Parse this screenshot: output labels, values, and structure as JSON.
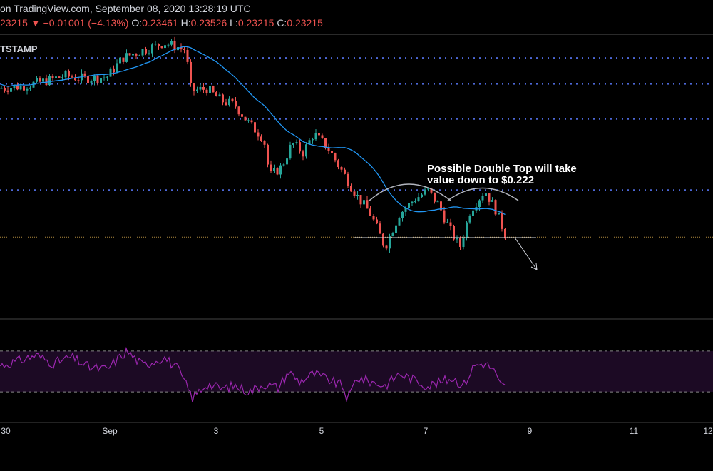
{
  "header": {
    "title": "on TradingView.com, September 08, 2020 13:28:19 UTC",
    "price": "23215",
    "change_arrow": "▼",
    "change": "−0.01001 (−4.13%)",
    "o_label": "O:",
    "o_value": "0.23461",
    "h_label": "H:",
    "h_value": "0.23526",
    "l_label": "L:",
    "l_value": "0.23215",
    "c_label": "C:",
    "c_value": "0.23215"
  },
  "symbol_label": "TSTAMP",
  "annotation": {
    "line1": "Possible Double Top will take",
    "line2": "value down to $0.222"
  },
  "colors": {
    "up": "#26a69a",
    "down": "#ef5350",
    "ma": "#2196f3",
    "rsi": "#9c27b0",
    "dotted": "#4d68d8",
    "rsi_band": "#1c0a24"
  },
  "chart_data": {
    "type": "candlestick",
    "x_ticks": [
      "30",
      "Sep",
      "3",
      "5",
      "7",
      "9",
      "11",
      "12"
    ],
    "ylim": [
      0.215,
      0.275
    ],
    "horizontal_levels": [
      0.27,
      0.2645,
      0.2571,
      0.2421
    ],
    "support_level": 0.2271,
    "current_price": 0.23215,
    "indicators": [
      {
        "name": "Moving Average",
        "color": "#2196f3"
      },
      {
        "name": "RSI",
        "color": "#9c27b0",
        "band": [
          30,
          70
        ]
      }
    ],
    "price_path": [
      [
        0,
        0.2636
      ],
      [
        30,
        0.264
      ],
      [
        60,
        0.265
      ],
      [
        90,
        0.2662
      ],
      [
        120,
        0.2656
      ],
      [
        150,
        0.266
      ],
      [
        172,
        0.27
      ],
      [
        200,
        0.2716
      ],
      [
        230,
        0.2732
      ],
      [
        260,
        0.2718
      ],
      [
        268,
        0.263
      ],
      [
        290,
        0.2635
      ],
      [
        310,
        0.261
      ],
      [
        330,
        0.26
      ],
      [
        350,
        0.256
      ],
      [
        370,
        0.253
      ],
      [
        378,
        0.245
      ],
      [
        395,
        0.247
      ],
      [
        410,
        0.252
      ],
      [
        425,
        0.25
      ],
      [
        440,
        0.254
      ],
      [
        460,
        0.251
      ],
      [
        480,
        0.246
      ],
      [
        500,
        0.241
      ],
      [
        520,
        0.237
      ],
      [
        540,
        0.23
      ],
      [
        560,
        0.237
      ],
      [
        580,
        0.24
      ],
      [
        600,
        0.242
      ],
      [
        615,
        0.239
      ],
      [
        630,
        0.234
      ],
      [
        645,
        0.23
      ],
      [
        660,
        0.238
      ],
      [
        680,
        0.242
      ],
      [
        695,
        0.238
      ],
      [
        710,
        0.2321
      ]
    ],
    "rsi_path": [
      [
        0,
        56
      ],
      [
        25,
        60
      ],
      [
        50,
        66
      ],
      [
        75,
        58
      ],
      [
        100,
        64
      ],
      [
        125,
        54
      ],
      [
        150,
        52
      ],
      [
        165,
        62
      ],
      [
        178,
        70
      ],
      [
        200,
        56
      ],
      [
        230,
        64
      ],
      [
        250,
        52
      ],
      [
        270,
        24
      ],
      [
        290,
        38
      ],
      [
        310,
        33
      ],
      [
        330,
        36
      ],
      [
        350,
        30
      ],
      [
        370,
        38
      ],
      [
        390,
        34
      ],
      [
        405,
        50
      ],
      [
        420,
        40
      ],
      [
        440,
        48
      ],
      [
        460,
        42
      ],
      [
        480,
        36
      ],
      [
        488,
        22
      ],
      [
        500,
        44
      ],
      [
        520,
        40
      ],
      [
        540,
        36
      ],
      [
        560,
        48
      ],
      [
        580,
        42
      ],
      [
        600,
        36
      ],
      [
        620,
        40
      ],
      [
        635,
        44
      ],
      [
        650,
        36
      ],
      [
        665,
        56
      ],
      [
        680,
        58
      ],
      [
        692,
        52
      ],
      [
        700,
        38
      ],
      [
        710,
        34
      ]
    ]
  }
}
